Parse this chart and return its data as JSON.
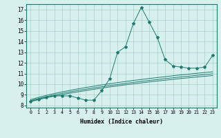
{
  "xlabel": "Humidex (Indice chaleur)",
  "x_data": [
    0,
    1,
    2,
    3,
    4,
    5,
    6,
    7,
    8,
    9,
    10,
    11,
    12,
    13,
    14,
    15,
    16,
    17,
    18,
    19,
    20,
    21,
    22,
    23
  ],
  "y_main": [
    8.4,
    8.6,
    8.8,
    8.9,
    8.9,
    8.9,
    8.7,
    8.5,
    8.5,
    9.4,
    10.5,
    13.0,
    13.5,
    15.7,
    17.2,
    15.8,
    14.4,
    12.3,
    11.7,
    11.6,
    11.5,
    11.5,
    11.6,
    12.7
  ],
  "y_reg1": [
    8.35,
    8.55,
    8.72,
    8.88,
    9.02,
    9.16,
    9.28,
    9.4,
    9.52,
    9.63,
    9.74,
    9.84,
    9.94,
    10.03,
    10.12,
    10.21,
    10.29,
    10.37,
    10.45,
    10.53,
    10.6,
    10.67,
    10.74,
    10.81
  ],
  "y_reg2": [
    8.45,
    8.65,
    8.83,
    8.99,
    9.14,
    9.28,
    9.41,
    9.53,
    9.65,
    9.76,
    9.87,
    9.97,
    10.07,
    10.17,
    10.26,
    10.35,
    10.43,
    10.52,
    10.6,
    10.68,
    10.75,
    10.83,
    10.9,
    10.97
  ],
  "y_reg3": [
    8.55,
    8.76,
    8.95,
    9.12,
    9.28,
    9.42,
    9.56,
    9.69,
    9.81,
    9.93,
    10.04,
    10.15,
    10.25,
    10.35,
    10.44,
    10.53,
    10.62,
    10.7,
    10.79,
    10.87,
    10.94,
    11.02,
    11.09,
    11.16
  ],
  "line_color": "#1a7a6e",
  "bg_color": "#d7f0ee",
  "grid_color": "#aacfcc",
  "ylim": [
    7.8,
    17.5
  ],
  "xlim": [
    -0.5,
    23.5
  ],
  "yticks": [
    8,
    9,
    10,
    11,
    12,
    13,
    14,
    15,
    16,
    17
  ],
  "xticks": [
    0,
    1,
    2,
    3,
    4,
    5,
    6,
    7,
    8,
    9,
    10,
    11,
    12,
    13,
    14,
    15,
    16,
    17,
    18,
    19,
    20,
    21,
    22,
    23
  ]
}
